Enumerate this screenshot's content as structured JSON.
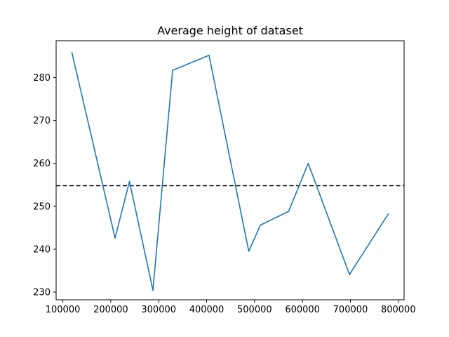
{
  "chart_data": {
    "type": "line",
    "title": "Average height of dataset",
    "xlabel": "",
    "ylabel": "",
    "xlim": [
      86000,
      812000
    ],
    "ylim": [
      228.2,
      288.6
    ],
    "grid": false,
    "legend": "none",
    "xticks": [
      100000,
      200000,
      300000,
      400000,
      500000,
      600000,
      700000,
      800000
    ],
    "xtick_labels": [
      "100000",
      "200000",
      "300000",
      "400000",
      "500000",
      "600000",
      "700000",
      "800000"
    ],
    "yticks": [
      230,
      240,
      250,
      260,
      270,
      280
    ],
    "ytick_labels": [
      "230",
      "240",
      "250",
      "260",
      "270",
      "280"
    ],
    "series": [
      {
        "color": "#1f77b4",
        "style": "solid",
        "points": [
          {
            "x": 119000,
            "y": 285.8
          },
          {
            "x": 209000,
            "y": 242.6
          },
          {
            "x": 239000,
            "y": 255.8
          },
          {
            "x": 288000,
            "y": 230.4
          },
          {
            "x": 329000,
            "y": 281.7
          },
          {
            "x": 405000,
            "y": 285.2
          },
          {
            "x": 488000,
            "y": 239.5
          },
          {
            "x": 512000,
            "y": 245.6
          },
          {
            "x": 571000,
            "y": 248.8
          },
          {
            "x": 612000,
            "y": 260.0
          },
          {
            "x": 698000,
            "y": 234.1
          },
          {
            "x": 779000,
            "y": 248.2
          }
        ]
      }
    ],
    "reference_line": {
      "orientation": "horizontal",
      "y": 254.8,
      "color": "#000000",
      "style": "dashed"
    }
  }
}
